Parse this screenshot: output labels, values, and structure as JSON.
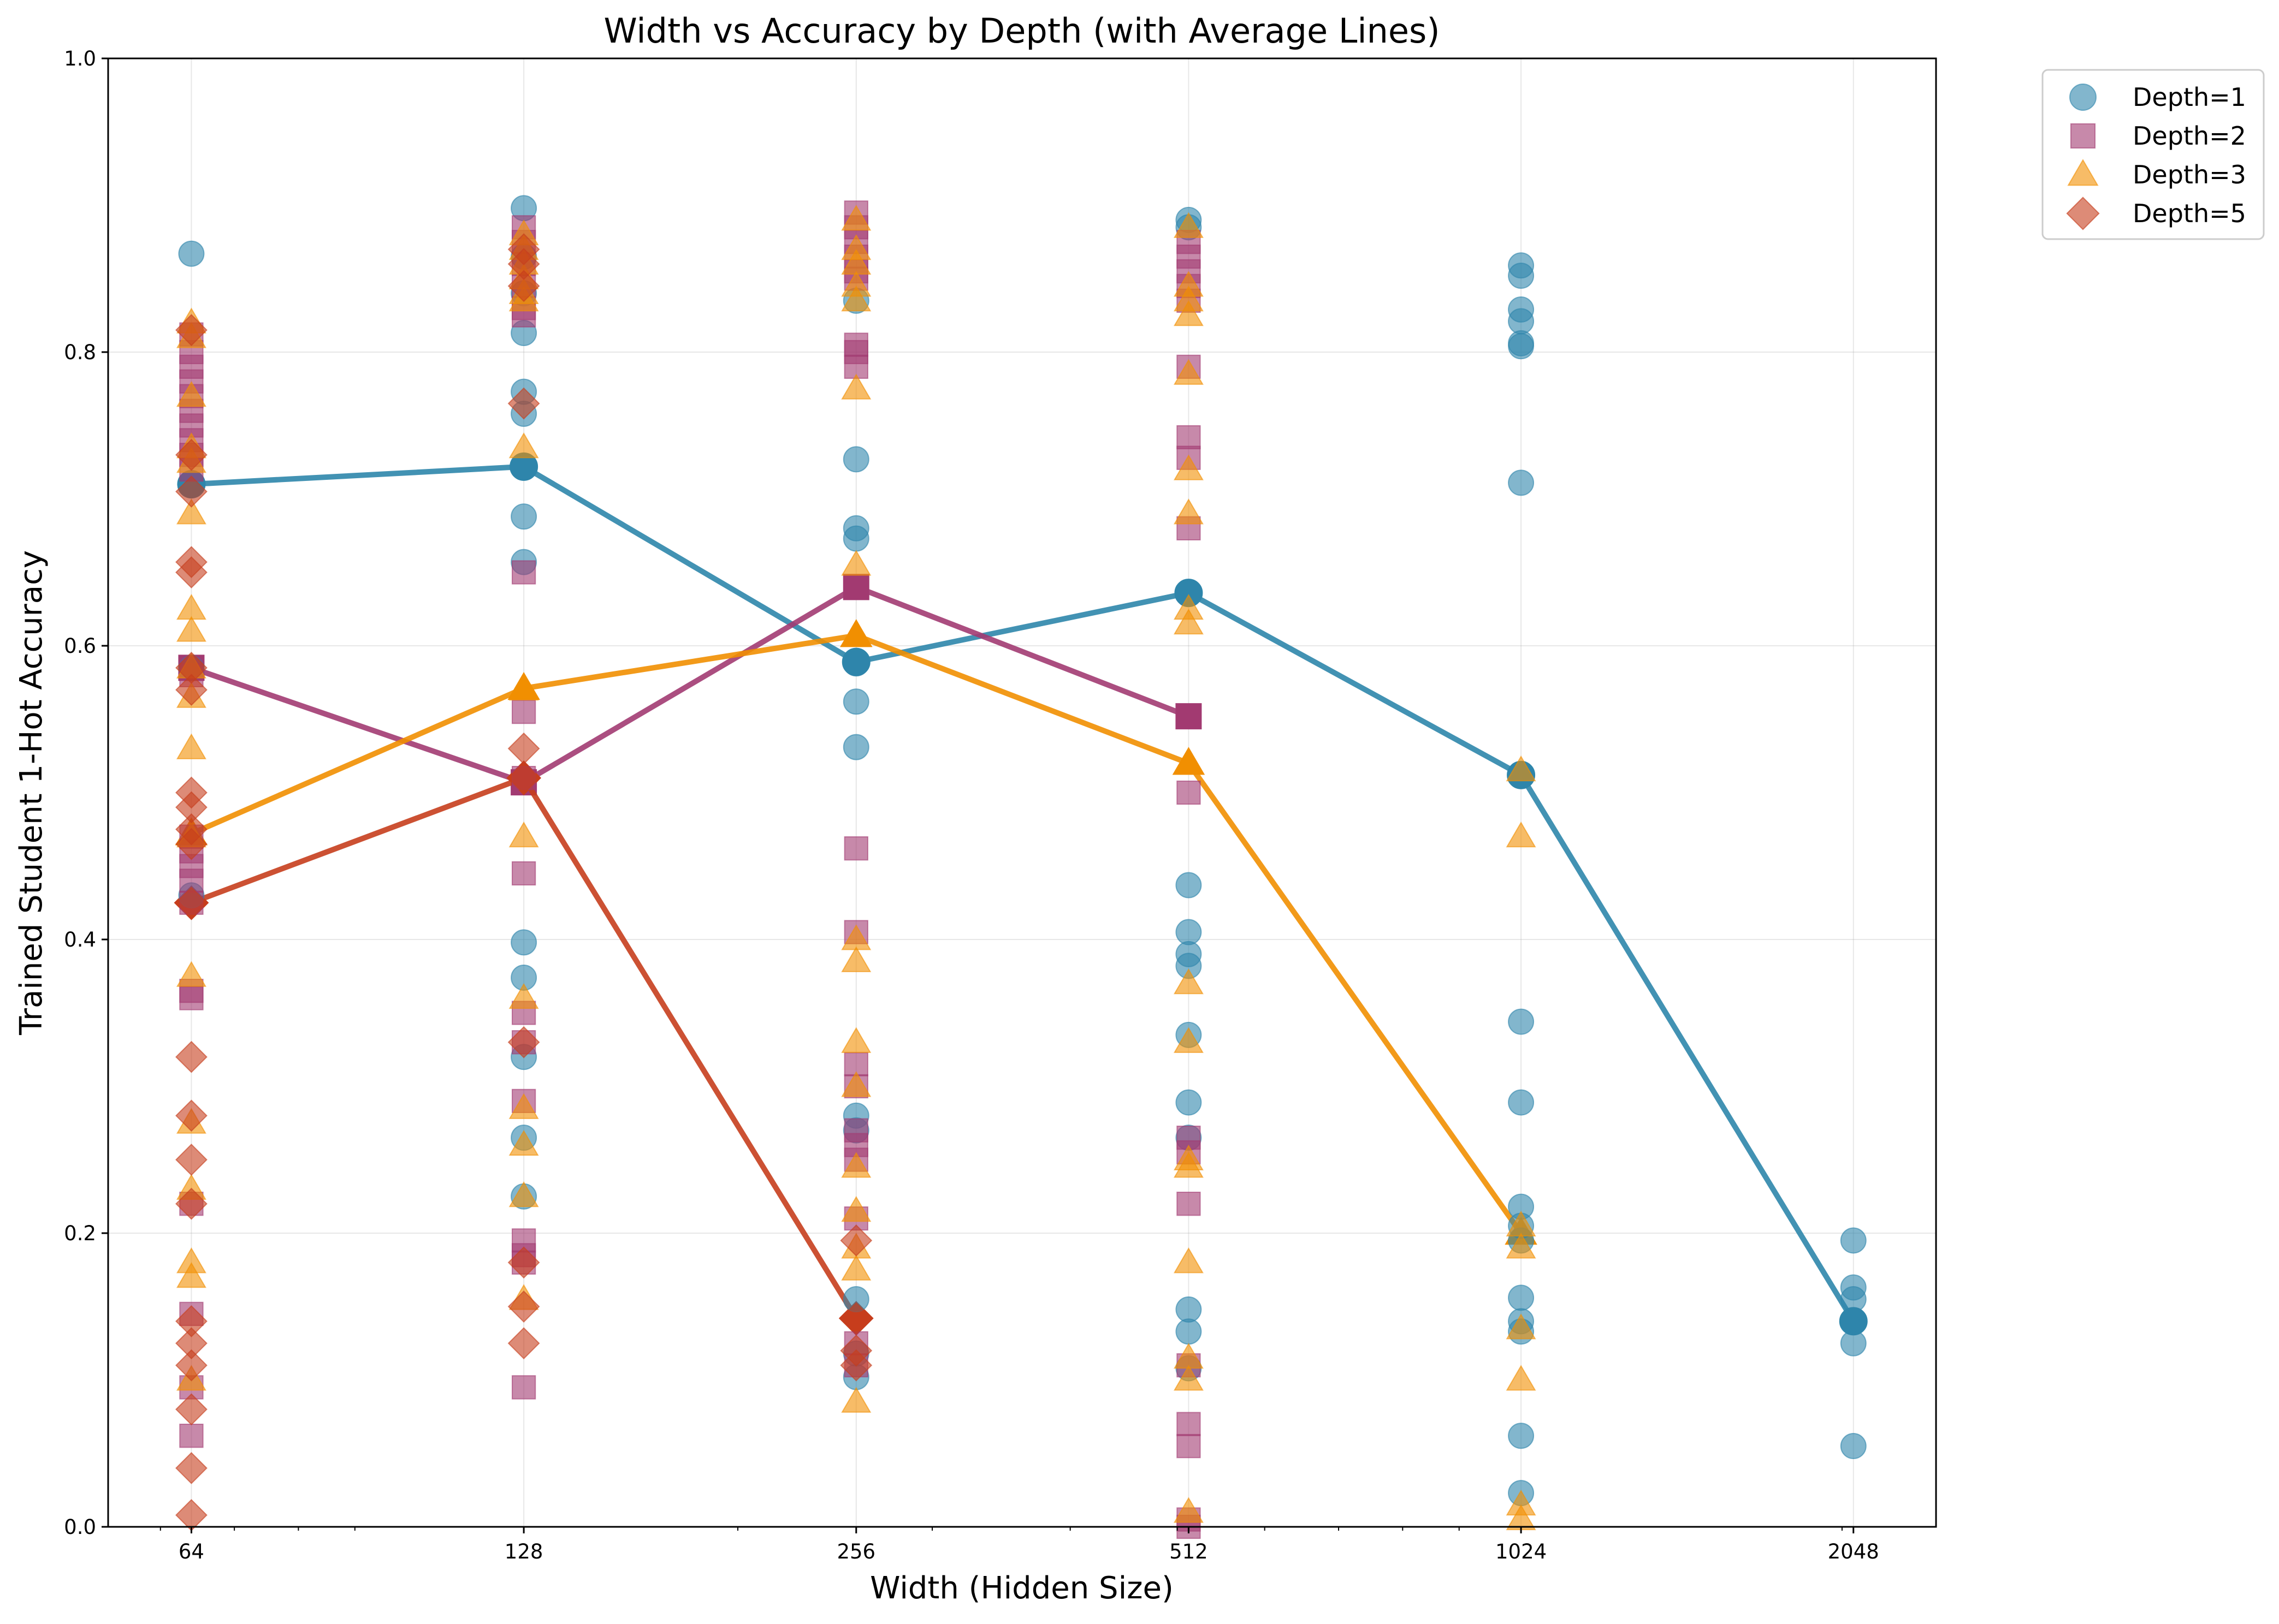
{
  "chart_data": {
    "type": "scatter",
    "title": "Width vs Accuracy by Depth (with Average Lines)",
    "xlabel": "Width (Hidden Size)",
    "ylabel": "Trained Student 1-Hot Accuracy",
    "xscale": "log2",
    "xlim": [
      53.8,
      2433
    ],
    "ylim": [
      0.0,
      1.0
    ],
    "x_ticks": [
      64,
      128,
      256,
      512,
      1024,
      2048
    ],
    "x_tick_labels": [
      "64",
      "128",
      "256",
      "512",
      "1024",
      "2048"
    ],
    "y_ticks": [
      0.0,
      0.2,
      0.4,
      0.6,
      0.8,
      1.0
    ],
    "y_tick_labels": [
      "0.0",
      "0.2",
      "0.4",
      "0.6",
      "0.8",
      "1.0"
    ],
    "grid": true,
    "legend_position": "outside-top-right",
    "series": [
      {
        "name": "Depth=1",
        "marker": "circle",
        "color": "#2E86AB",
        "points": [
          [
            64,
            0.867
          ],
          [
            64,
            0.71
          ],
          [
            64,
            0.585
          ],
          [
            64,
            0.43
          ],
          [
            128,
            0.898
          ],
          [
            128,
            0.865
          ],
          [
            128,
            0.84
          ],
          [
            128,
            0.813
          ],
          [
            128,
            0.773
          ],
          [
            128,
            0.758
          ],
          [
            128,
            0.722
          ],
          [
            128,
            0.688
          ],
          [
            128,
            0.657
          ],
          [
            128,
            0.398
          ],
          [
            128,
            0.374
          ],
          [
            128,
            0.32
          ],
          [
            128,
            0.265
          ],
          [
            128,
            0.225
          ],
          [
            256,
            0.835
          ],
          [
            256,
            0.727
          ],
          [
            256,
            0.68
          ],
          [
            256,
            0.673
          ],
          [
            256,
            0.588
          ],
          [
            256,
            0.562
          ],
          [
            256,
            0.531
          ],
          [
            256,
            0.28
          ],
          [
            256,
            0.27
          ],
          [
            256,
            0.155
          ],
          [
            256,
            0.118
          ],
          [
            256,
            0.102
          ],
          [
            512,
            0.89
          ],
          [
            512,
            0.885
          ],
          [
            512,
            0.636
          ],
          [
            512,
            0.437
          ],
          [
            512,
            0.405
          ],
          [
            512,
            0.39
          ],
          [
            512,
            0.382
          ],
          [
            512,
            0.335
          ],
          [
            512,
            0.289
          ],
          [
            512,
            0.265
          ],
          [
            512,
            0.148
          ],
          [
            512,
            0.133
          ],
          [
            512,
            0.108
          ],
          [
            1024,
            0.859
          ],
          [
            1024,
            0.852
          ],
          [
            1024,
            0.829
          ],
          [
            1024,
            0.821
          ],
          [
            1024,
            0.806
          ],
          [
            1024,
            0.804
          ],
          [
            1024,
            0.711
          ],
          [
            1024,
            0.512
          ],
          [
            1024,
            0.344
          ],
          [
            1024,
            0.289
          ],
          [
            1024,
            0.218
          ],
          [
            1024,
            0.205
          ],
          [
            1024,
            0.195
          ],
          [
            1024,
            0.156
          ],
          [
            1024,
            0.14
          ],
          [
            1024,
            0.133
          ],
          [
            1024,
            0.062
          ],
          [
            1024,
            0.023
          ],
          [
            2048,
            0.195
          ],
          [
            2048,
            0.163
          ],
          [
            2048,
            0.155
          ],
          [
            2048,
            0.14
          ],
          [
            2048,
            0.125
          ],
          [
            2048,
            0.055
          ]
        ],
        "average": [
          [
            64,
            0.71
          ],
          [
            128,
            0.722
          ],
          [
            256,
            0.589
          ],
          [
            512,
            0.636
          ],
          [
            1024,
            0.512
          ],
          [
            2048,
            0.14
          ]
        ]
      },
      {
        "name": "Depth=2",
        "marker": "square",
        "color": "#A23B72",
        "points": [
          [
            64,
            0.812
          ],
          [
            64,
            0.8
          ],
          [
            64,
            0.79
          ],
          [
            64,
            0.78
          ],
          [
            64,
            0.77
          ],
          [
            64,
            0.76
          ],
          [
            64,
            0.75
          ],
          [
            64,
            0.74
          ],
          [
            64,
            0.73
          ],
          [
            64,
            0.72
          ],
          [
            64,
            0.585
          ],
          [
            64,
            0.58
          ],
          [
            64,
            0.47
          ],
          [
            64,
            0.46
          ],
          [
            64,
            0.45
          ],
          [
            64,
            0.44
          ],
          [
            64,
            0.425
          ],
          [
            64,
            0.365
          ],
          [
            64,
            0.36
          ],
          [
            64,
            0.22
          ],
          [
            64,
            0.145
          ],
          [
            64,
            0.095
          ],
          [
            64,
            0.062
          ],
          [
            128,
            0.885
          ],
          [
            128,
            0.875
          ],
          [
            128,
            0.86
          ],
          [
            128,
            0.845
          ],
          [
            128,
            0.83
          ],
          [
            128,
            0.825
          ],
          [
            128,
            0.65
          ],
          [
            128,
            0.555
          ],
          [
            128,
            0.51
          ],
          [
            128,
            0.445
          ],
          [
            128,
            0.35
          ],
          [
            128,
            0.33
          ],
          [
            128,
            0.29
          ],
          [
            128,
            0.195
          ],
          [
            128,
            0.185
          ],
          [
            128,
            0.18
          ],
          [
            128,
            0.095
          ],
          [
            256,
            0.895
          ],
          [
            256,
            0.885
          ],
          [
            256,
            0.875
          ],
          [
            256,
            0.865
          ],
          [
            256,
            0.855
          ],
          [
            256,
            0.85
          ],
          [
            256,
            0.805
          ],
          [
            256,
            0.8
          ],
          [
            256,
            0.79
          ],
          [
            256,
            0.64
          ],
          [
            256,
            0.462
          ],
          [
            256,
            0.405
          ],
          [
            256,
            0.315
          ],
          [
            256,
            0.3
          ],
          [
            256,
            0.27
          ],
          [
            256,
            0.26
          ],
          [
            256,
            0.25
          ],
          [
            256,
            0.21
          ],
          [
            256,
            0.125
          ],
          [
            256,
            0.11
          ],
          [
            512,
            0.875
          ],
          [
            512,
            0.865
          ],
          [
            512,
            0.855
          ],
          [
            512,
            0.845
          ],
          [
            512,
            0.835
          ],
          [
            512,
            0.79
          ],
          [
            512,
            0.742
          ],
          [
            512,
            0.728
          ],
          [
            512,
            0.68
          ],
          [
            512,
            0.552
          ],
          [
            512,
            0.5
          ],
          [
            512,
            0.265
          ],
          [
            512,
            0.255
          ],
          [
            512,
            0.22
          ],
          [
            512,
            0.11
          ],
          [
            512,
            0.07
          ],
          [
            512,
            0.055
          ],
          [
            512,
            0.005
          ],
          [
            512,
            0.0
          ]
        ],
        "average": [
          [
            64,
            0.585
          ],
          [
            128,
            0.507
          ],
          [
            256,
            0.64
          ],
          [
            512,
            0.552
          ]
        ]
      },
      {
        "name": "Depth=3",
        "marker": "triangle",
        "color": "#F18F01",
        "points": [
          [
            64,
            0.82
          ],
          [
            64,
            0.81
          ],
          [
            64,
            0.77
          ],
          [
            64,
            0.735
          ],
          [
            64,
            0.725
          ],
          [
            64,
            0.69
          ],
          [
            64,
            0.625
          ],
          [
            64,
            0.61
          ],
          [
            64,
            0.585
          ],
          [
            64,
            0.565
          ],
          [
            64,
            0.53
          ],
          [
            64,
            0.47
          ],
          [
            64,
            0.375
          ],
          [
            64,
            0.275
          ],
          [
            64,
            0.23
          ],
          [
            64,
            0.18
          ],
          [
            64,
            0.17
          ],
          [
            64,
            0.1
          ],
          [
            128,
            0.88
          ],
          [
            128,
            0.87
          ],
          [
            128,
            0.86
          ],
          [
            128,
            0.85
          ],
          [
            128,
            0.84
          ],
          [
            128,
            0.835
          ],
          [
            128,
            0.735
          ],
          [
            128,
            0.57
          ],
          [
            128,
            0.47
          ],
          [
            128,
            0.36
          ],
          [
            128,
            0.285
          ],
          [
            128,
            0.26
          ],
          [
            128,
            0.225
          ],
          [
            128,
            0.155
          ],
          [
            256,
            0.89
          ],
          [
            256,
            0.87
          ],
          [
            256,
            0.86
          ],
          [
            256,
            0.845
          ],
          [
            256,
            0.835
          ],
          [
            256,
            0.775
          ],
          [
            256,
            0.655
          ],
          [
            256,
            0.607
          ],
          [
            256,
            0.4
          ],
          [
            256,
            0.385
          ],
          [
            256,
            0.33
          ],
          [
            256,
            0.3
          ],
          [
            256,
            0.245
          ],
          [
            256,
            0.215
          ],
          [
            256,
            0.19
          ],
          [
            256,
            0.175
          ],
          [
            256,
            0.085
          ],
          [
            512,
            0.885
          ],
          [
            512,
            0.845
          ],
          [
            512,
            0.835
          ],
          [
            512,
            0.825
          ],
          [
            512,
            0.785
          ],
          [
            512,
            0.72
          ],
          [
            512,
            0.69
          ],
          [
            512,
            0.625
          ],
          [
            512,
            0.615
          ],
          [
            512,
            0.52
          ],
          [
            512,
            0.37
          ],
          [
            512,
            0.33
          ],
          [
            512,
            0.25
          ],
          [
            512,
            0.245
          ],
          [
            512,
            0.18
          ],
          [
            512,
            0.115
          ],
          [
            512,
            0.1
          ],
          [
            512,
            0.01
          ],
          [
            1024,
            0.515
          ],
          [
            1024,
            0.47
          ],
          [
            1024,
            0.205
          ],
          [
            1024,
            0.19
          ],
          [
            1024,
            0.135
          ],
          [
            1024,
            0.1
          ],
          [
            1024,
            0.015
          ],
          [
            1024,
            0.005
          ]
        ],
        "average": [
          [
            64,
            0.472
          ],
          [
            128,
            0.571
          ],
          [
            256,
            0.607
          ],
          [
            512,
            0.52
          ],
          [
            1024,
            0.2
          ]
        ]
      },
      {
        "name": "Depth=5",
        "marker": "diamond",
        "color": "#C73E1D",
        "points": [
          [
            64,
            0.815
          ],
          [
            64,
            0.73
          ],
          [
            64,
            0.705
          ],
          [
            64,
            0.657
          ],
          [
            64,
            0.65
          ],
          [
            64,
            0.585
          ],
          [
            64,
            0.57
          ],
          [
            64,
            0.5
          ],
          [
            64,
            0.49
          ],
          [
            64,
            0.475
          ],
          [
            64,
            0.465
          ],
          [
            64,
            0.425
          ],
          [
            64,
            0.32
          ],
          [
            64,
            0.28
          ],
          [
            64,
            0.25
          ],
          [
            64,
            0.22
          ],
          [
            64,
            0.14
          ],
          [
            64,
            0.125
          ],
          [
            64,
            0.11
          ],
          [
            64,
            0.08
          ],
          [
            64,
            0.04
          ],
          [
            64,
            0.008
          ],
          [
            128,
            0.87
          ],
          [
            128,
            0.86
          ],
          [
            128,
            0.845
          ],
          [
            128,
            0.765
          ],
          [
            128,
            0.53
          ],
          [
            128,
            0.51
          ],
          [
            128,
            0.33
          ],
          [
            128,
            0.18
          ],
          [
            128,
            0.15
          ],
          [
            128,
            0.125
          ],
          [
            256,
            0.195
          ],
          [
            256,
            0.142
          ],
          [
            256,
            0.12
          ],
          [
            256,
            0.11
          ]
        ],
        "average": [
          [
            64,
            0.425
          ],
          [
            128,
            0.51
          ],
          [
            256,
            0.142
          ]
        ]
      }
    ]
  }
}
